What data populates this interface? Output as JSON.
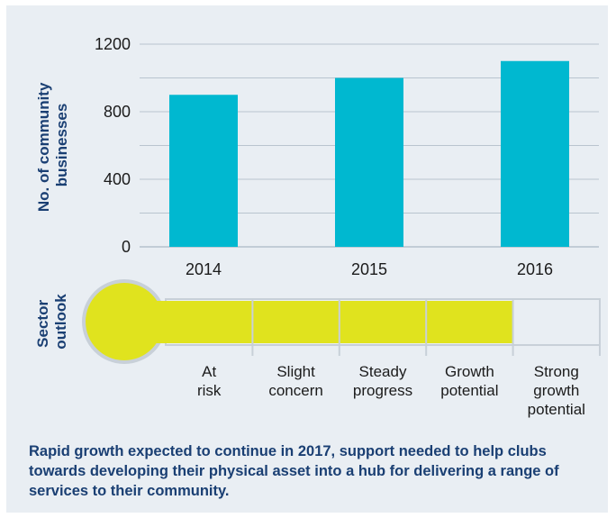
{
  "chart_data": {
    "type": "bar",
    "categories": [
      "2014",
      "2015",
      "2016"
    ],
    "values": [
      900,
      1000,
      1100
    ],
    "ylabel": "No. of community businesses",
    "ylabel_lines": [
      "No. of community",
      "businesses"
    ],
    "yticks": [
      "0",
      "400",
      "800",
      "1200"
    ],
    "ylim": [
      0,
      1200
    ],
    "grid": true,
    "bar_color": "#00b8d0"
  },
  "outlook": {
    "label": "Sector outlook",
    "label_lines": [
      "Sector",
      "outlook"
    ],
    "levels": [
      {
        "lines": [
          "At",
          "risk"
        ]
      },
      {
        "lines": [
          "Slight",
          "concern"
        ]
      },
      {
        "lines": [
          "Steady",
          "progress"
        ]
      },
      {
        "lines": [
          "Growth",
          "potential"
        ]
      },
      {
        "lines": [
          "Strong",
          "growth",
          "potential"
        ]
      }
    ],
    "filled_levels": 4,
    "total_levels": 5,
    "fill_color": "#e0e31e"
  },
  "caption": "Rapid growth expected to continue in 2017, support needed to help clubs towards developing their physical asset into a hub for delivering a range of services to their community."
}
